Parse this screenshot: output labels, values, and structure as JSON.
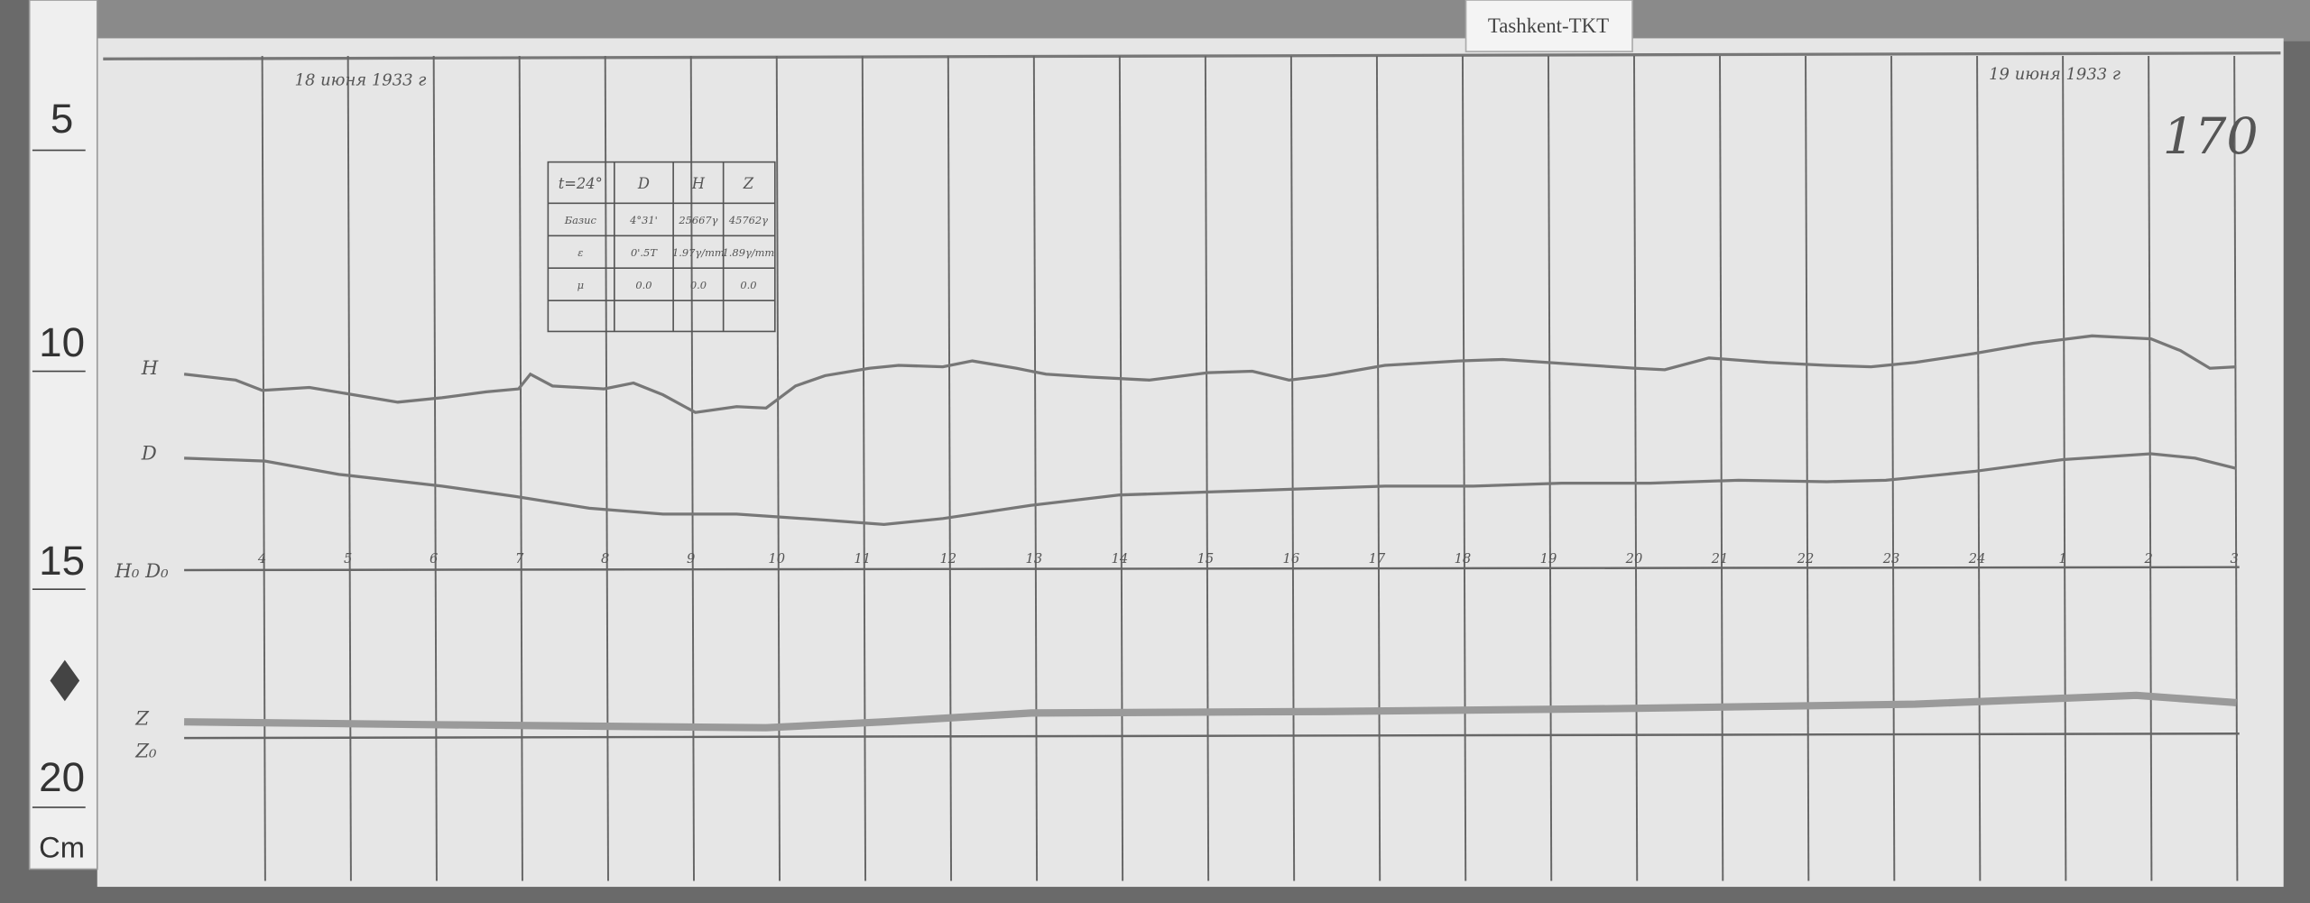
{
  "label": "Tashkent-TKT",
  "sheet_number": "170",
  "dates": [
    "18 июня 1933 г",
    "19 июня 1933 г"
  ],
  "ruler": [
    "5",
    "10",
    "15",
    "20",
    "Cm"
  ],
  "trace_labels": {
    "H": "H",
    "D": "D",
    "baseline_HD": "H₀ D₀",
    "Z": "Z",
    "baseline_Z": "Z₀"
  },
  "hours": [
    "4",
    "5",
    "6",
    "7",
    "8",
    "9",
    "10",
    "11",
    "12",
    "13",
    "14",
    "15",
    "16",
    "17",
    "18",
    "19",
    "20",
    "21",
    "22",
    "23",
    "24",
    "1",
    "2",
    "3"
  ],
  "table": {
    "header": [
      "t=24°",
      "D",
      "H",
      "Z"
    ],
    "rows": [
      [
        "Базис",
        "4°31'",
        "25667γ",
        "45762γ"
      ],
      [
        "ε",
        "0'.5T",
        "1.97γ/mm",
        "1.89γ/mm"
      ],
      [
        "μ",
        "0.0",
        "0.0",
        "0.0"
      ]
    ]
  }
}
